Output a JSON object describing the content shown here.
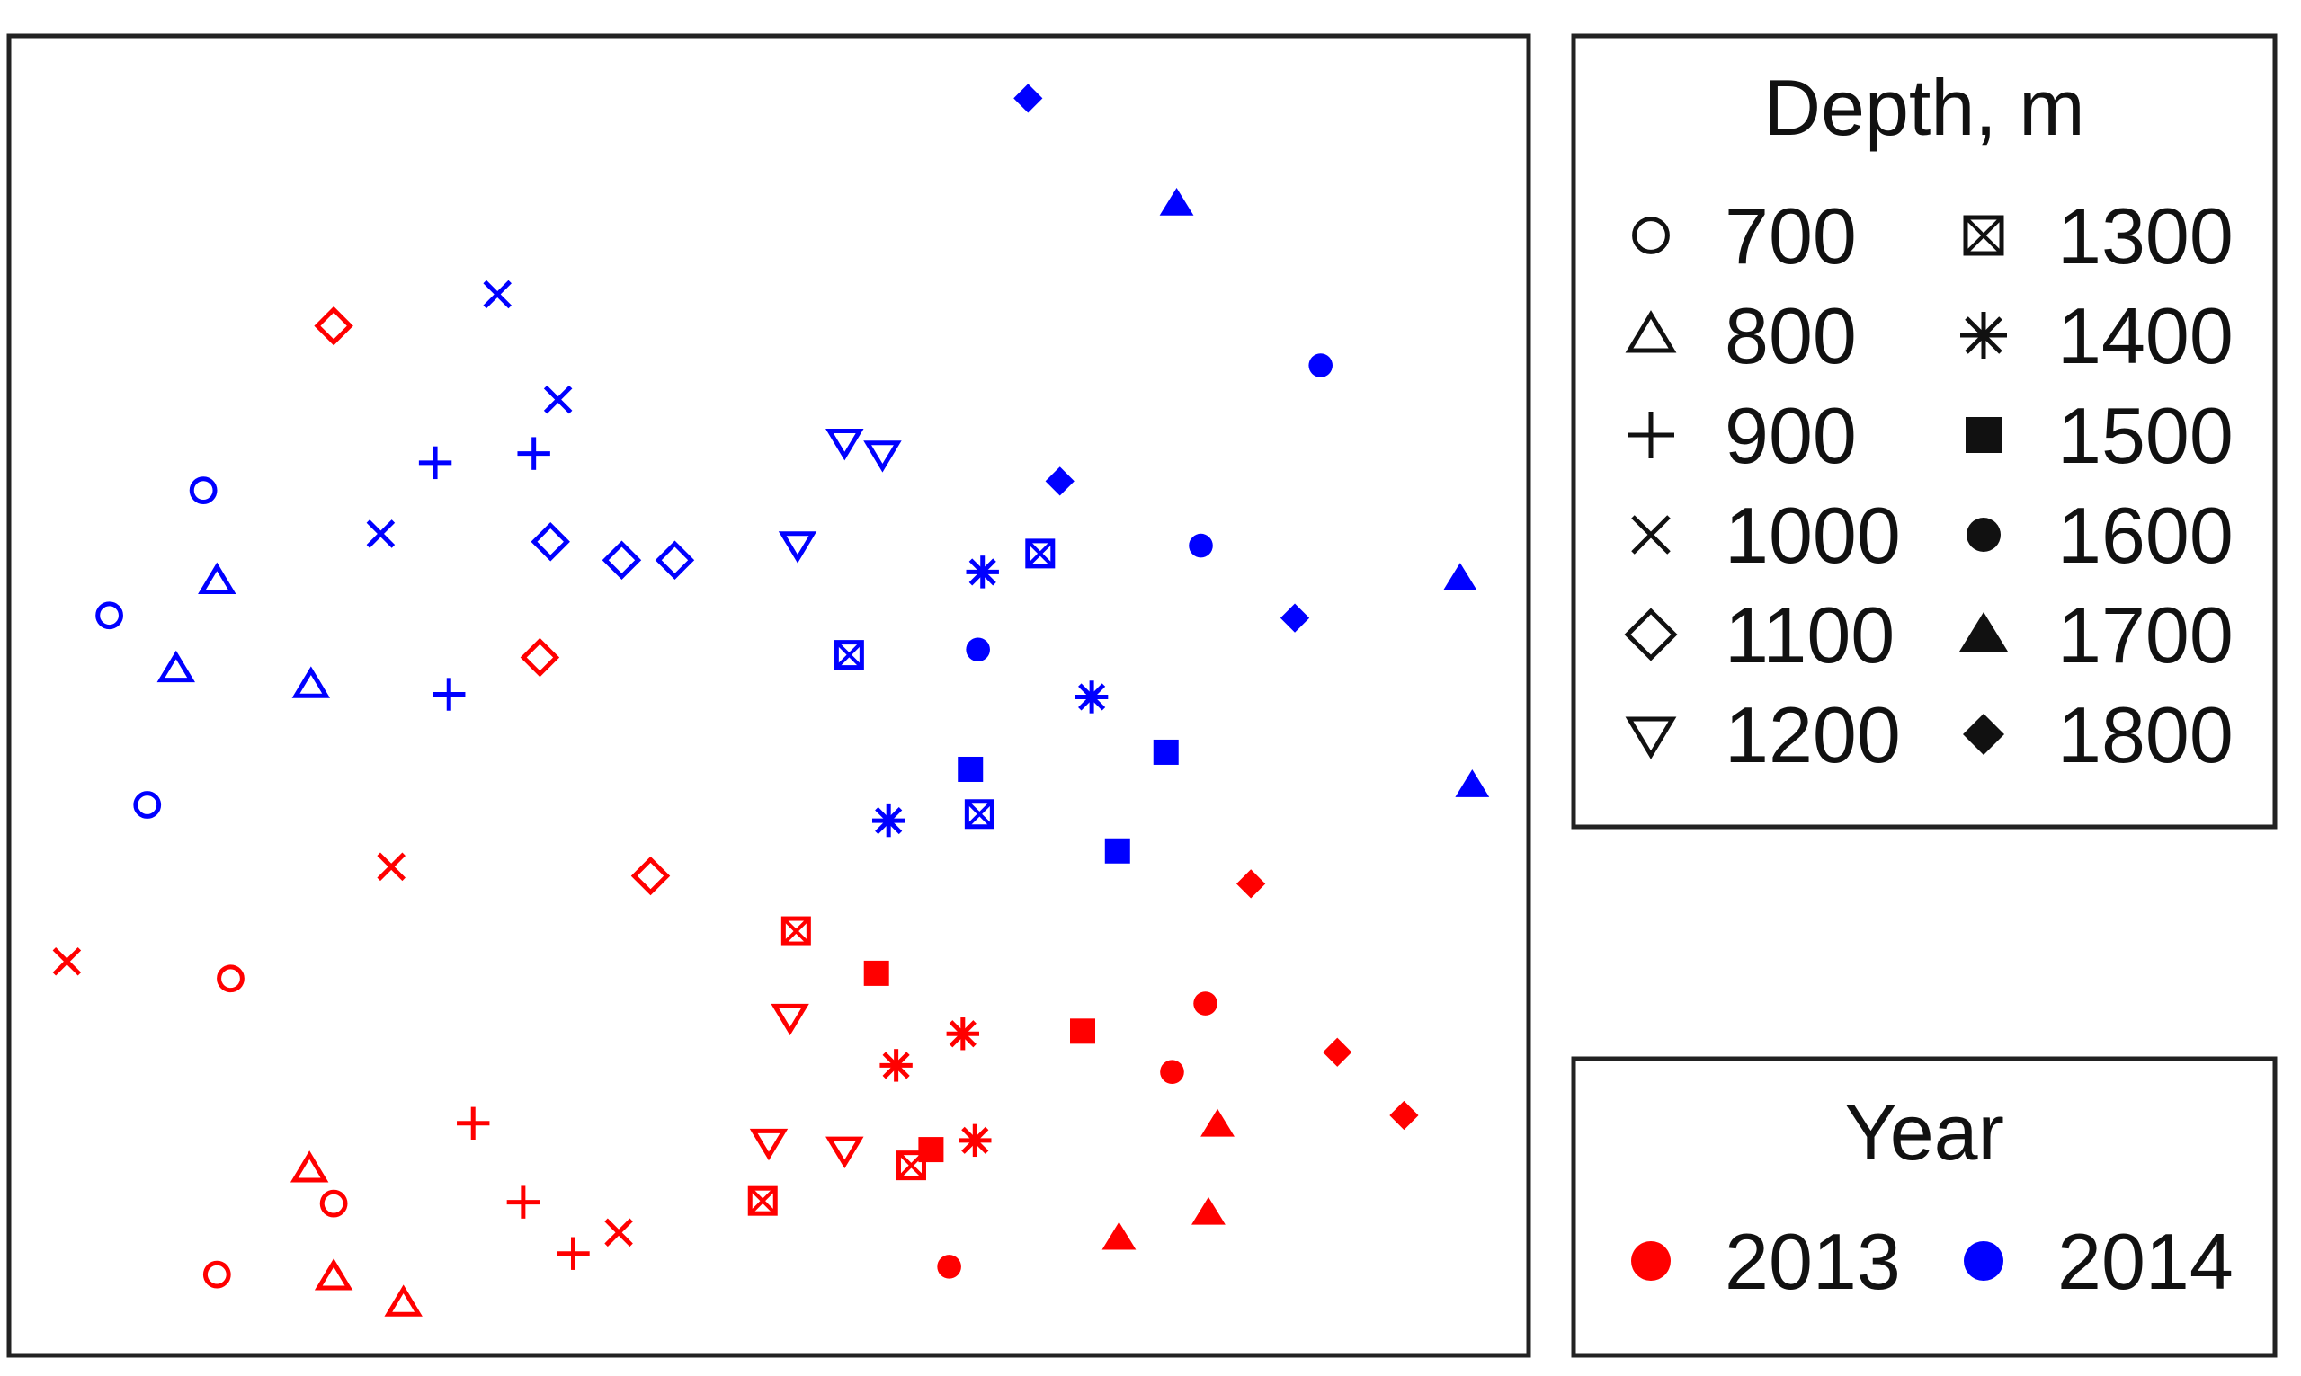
{
  "chart_data": {
    "type": "scatter",
    "title": "",
    "xlabel": "",
    "ylabel": "",
    "axes_shown": false,
    "xlim": [
      0,
      100
    ],
    "ylim": [
      0,
      100
    ],
    "depth_legend": {
      "title": "Depth, m",
      "entries": [
        {
          "label": "700",
          "symbol": "open-circle"
        },
        {
          "label": "800",
          "symbol": "open-triangle-up"
        },
        {
          "label": "900",
          "symbol": "plus"
        },
        {
          "label": "1000",
          "symbol": "cross"
        },
        {
          "label": "1100",
          "symbol": "open-diamond"
        },
        {
          "label": "1200",
          "symbol": "open-triangle-down"
        },
        {
          "label": "1300",
          "symbol": "boxed-x"
        },
        {
          "label": "1400",
          "symbol": "asterisk"
        },
        {
          "label": "1500",
          "symbol": "filled-square"
        },
        {
          "label": "1600",
          "symbol": "filled-circle"
        },
        {
          "label": "1700",
          "symbol": "filled-triangle-up"
        },
        {
          "label": "1800",
          "symbol": "filled-diamond"
        }
      ]
    },
    "year_legend": {
      "title": "Year",
      "entries": [
        {
          "label": "2013",
          "color": "#ff0000"
        },
        {
          "label": "2014",
          "color": "#0000ff"
        }
      ]
    },
    "series": [
      {
        "year": "2013",
        "color": "#ff0000",
        "points": [
          {
            "depth": "700",
            "x": 14.5,
            "y": 28.5
          },
          {
            "depth": "700",
            "x": 21.3,
            "y": 11.4
          },
          {
            "depth": "700",
            "x": 13.6,
            "y": 6.0
          },
          {
            "depth": "800",
            "x": 19.7,
            "y": 14.0
          },
          {
            "depth": "800",
            "x": 21.3,
            "y": 5.8
          },
          {
            "depth": "800",
            "x": 25.9,
            "y": 3.8
          },
          {
            "depth": "900",
            "x": 30.5,
            "y": 17.5
          },
          {
            "depth": "900",
            "x": 33.8,
            "y": 11.5
          },
          {
            "depth": "900",
            "x": 37.1,
            "y": 7.6
          },
          {
            "depth": "1000",
            "x": 3.7,
            "y": 29.8
          },
          {
            "depth": "1000",
            "x": 25.1,
            "y": 37.0
          },
          {
            "depth": "1000",
            "x": 40.1,
            "y": 9.2
          },
          {
            "depth": "1100",
            "x": 21.3,
            "y": 78.1
          },
          {
            "depth": "1100",
            "x": 34.9,
            "y": 52.9
          },
          {
            "depth": "1100",
            "x": 42.2,
            "y": 36.3
          },
          {
            "depth": "1200",
            "x": 51.4,
            "y": 25.6
          },
          {
            "depth": "1200",
            "x": 50.0,
            "y": 16.1
          },
          {
            "depth": "1200",
            "x": 55.0,
            "y": 15.5
          },
          {
            "depth": "1300",
            "x": 51.8,
            "y": 32.1
          },
          {
            "depth": "1300",
            "x": 49.6,
            "y": 11.6
          },
          {
            "depth": "1300",
            "x": 59.4,
            "y": 14.3
          },
          {
            "depth": "1400",
            "x": 58.4,
            "y": 21.9
          },
          {
            "depth": "1400",
            "x": 62.8,
            "y": 24.3
          },
          {
            "depth": "1400",
            "x": 63.6,
            "y": 16.2
          },
          {
            "depth": "1500",
            "x": 57.1,
            "y": 28.9
          },
          {
            "depth": "1500",
            "x": 70.7,
            "y": 24.5
          },
          {
            "depth": "1500",
            "x": 60.7,
            "y": 15.5
          },
          {
            "depth": "1600",
            "x": 78.8,
            "y": 26.6
          },
          {
            "depth": "1600",
            "x": 76.6,
            "y": 21.4
          },
          {
            "depth": "1600",
            "x": 61.9,
            "y": 6.6
          },
          {
            "depth": "1700",
            "x": 79.6,
            "y": 17.4
          },
          {
            "depth": "1700",
            "x": 79.0,
            "y": 10.7
          },
          {
            "depth": "1700",
            "x": 73.1,
            "y": 8.8
          },
          {
            "depth": "1800",
            "x": 81.8,
            "y": 35.7
          },
          {
            "depth": "1800",
            "x": 87.5,
            "y": 22.9
          },
          {
            "depth": "1800",
            "x": 91.9,
            "y": 18.1
          }
        ]
      },
      {
        "year": "2014",
        "color": "#0000ff",
        "points": [
          {
            "depth": "700",
            "x": 12.7,
            "y": 65.6
          },
          {
            "depth": "700",
            "x": 6.5,
            "y": 56.1
          },
          {
            "depth": "700",
            "x": 9.0,
            "y": 41.7
          },
          {
            "depth": "800",
            "x": 13.6,
            "y": 58.7
          },
          {
            "depth": "800",
            "x": 10.9,
            "y": 52.0
          },
          {
            "depth": "800",
            "x": 19.8,
            "y": 50.8
          },
          {
            "depth": "900",
            "x": 28.0,
            "y": 67.7
          },
          {
            "depth": "900",
            "x": 34.5,
            "y": 68.4
          },
          {
            "depth": "900",
            "x": 28.9,
            "y": 50.1
          },
          {
            "depth": "1000",
            "x": 32.1,
            "y": 80.5
          },
          {
            "depth": "1000",
            "x": 36.1,
            "y": 72.5
          },
          {
            "depth": "1000",
            "x": 24.4,
            "y": 62.3
          },
          {
            "depth": "1100",
            "x": 35.6,
            "y": 61.7
          },
          {
            "depth": "1100",
            "x": 40.3,
            "y": 60.3
          },
          {
            "depth": "1100",
            "x": 43.8,
            "y": 60.3
          },
          {
            "depth": "1200",
            "x": 55.0,
            "y": 69.3
          },
          {
            "depth": "1200",
            "x": 57.5,
            "y": 68.4
          },
          {
            "depth": "1200",
            "x": 51.9,
            "y": 61.5
          },
          {
            "depth": "1300",
            "x": 67.9,
            "y": 60.8
          },
          {
            "depth": "1300",
            "x": 55.3,
            "y": 53.1
          },
          {
            "depth": "1300",
            "x": 63.9,
            "y": 41.0
          },
          {
            "depth": "1400",
            "x": 64.1,
            "y": 59.4
          },
          {
            "depth": "1400",
            "x": 71.3,
            "y": 49.9
          },
          {
            "depth": "1400",
            "x": 57.9,
            "y": 40.5
          },
          {
            "depth": "1500",
            "x": 76.2,
            "y": 45.7
          },
          {
            "depth": "1500",
            "x": 63.3,
            "y": 44.4
          },
          {
            "depth": "1500",
            "x": 73.0,
            "y": 38.2
          },
          {
            "depth": "1600",
            "x": 86.4,
            "y": 75.1
          },
          {
            "depth": "1600",
            "x": 78.5,
            "y": 61.4
          },
          {
            "depth": "1600",
            "x": 63.8,
            "y": 53.5
          },
          {
            "depth": "1700",
            "x": 76.9,
            "y": 87.4
          },
          {
            "depth": "1700",
            "x": 95.6,
            "y": 58.9
          },
          {
            "depth": "1700",
            "x": 96.4,
            "y": 43.2
          },
          {
            "depth": "1800",
            "x": 67.1,
            "y": 95.4
          },
          {
            "depth": "1800",
            "x": 69.2,
            "y": 66.3
          },
          {
            "depth": "1800",
            "x": 84.7,
            "y": 55.9
          }
        ]
      }
    ]
  }
}
